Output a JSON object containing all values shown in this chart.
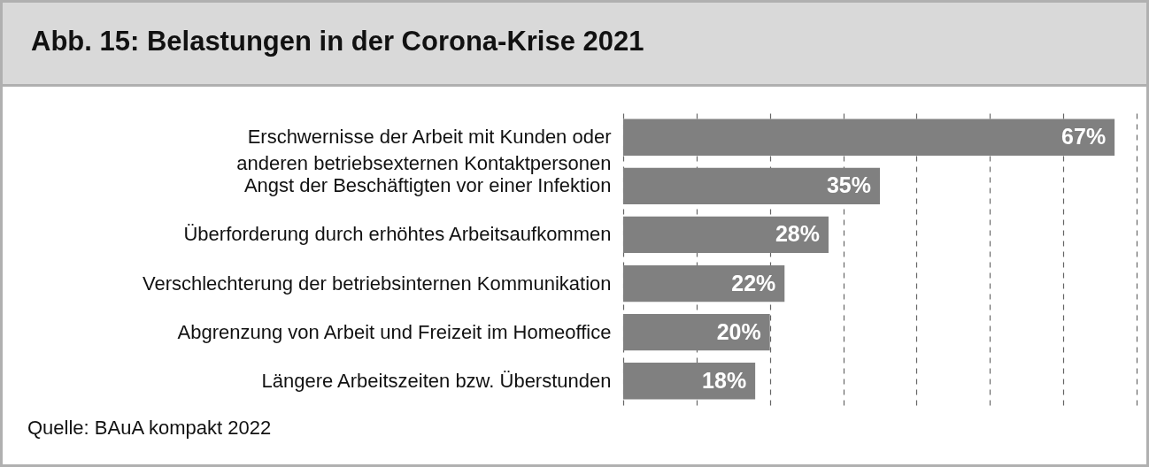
{
  "chart_data": {
    "type": "bar",
    "orientation": "horizontal",
    "title": "Abb. 15: Belastungen in der Corona-Krise 2021",
    "categories": [
      "Erschwernisse der Arbeit mit Kunden oder\nanderen betriebsexternen Kontaktpersonen",
      "Angst der Beschäftigten vor einer Infektion",
      "Überforderung durch erhöhtes Arbeitsaufkommen",
      "Verschlechterung der betriebsinternen Kommunikation",
      "Abgrenzung von Arbeit und Freizeit im Homeoffice",
      "Längere Arbeitszeiten bzw. Überstunden"
    ],
    "values": [
      67,
      35,
      28,
      22,
      20,
      18
    ],
    "value_labels": [
      "67%",
      "35%",
      "28%",
      "22%",
      "20%",
      "18%"
    ],
    "color": "#808080",
    "xlim": [
      0,
      70
    ],
    "xticks": [
      {
        "value": 0,
        "label": null
      },
      {
        "value": 10,
        "label": null
      },
      {
        "value": 20,
        "label": null
      },
      {
        "value": 30,
        "label": null
      },
      {
        "value": 40,
        "label": null
      },
      {
        "value": 50,
        "label": null
      },
      {
        "value": 60,
        "label": null
      },
      {
        "value": 70,
        "label": null
      }
    ],
    "grid": "x",
    "tick_labels": "y",
    "annotations": [
      "Quelle: BAuA kompakt 2022"
    ]
  }
}
